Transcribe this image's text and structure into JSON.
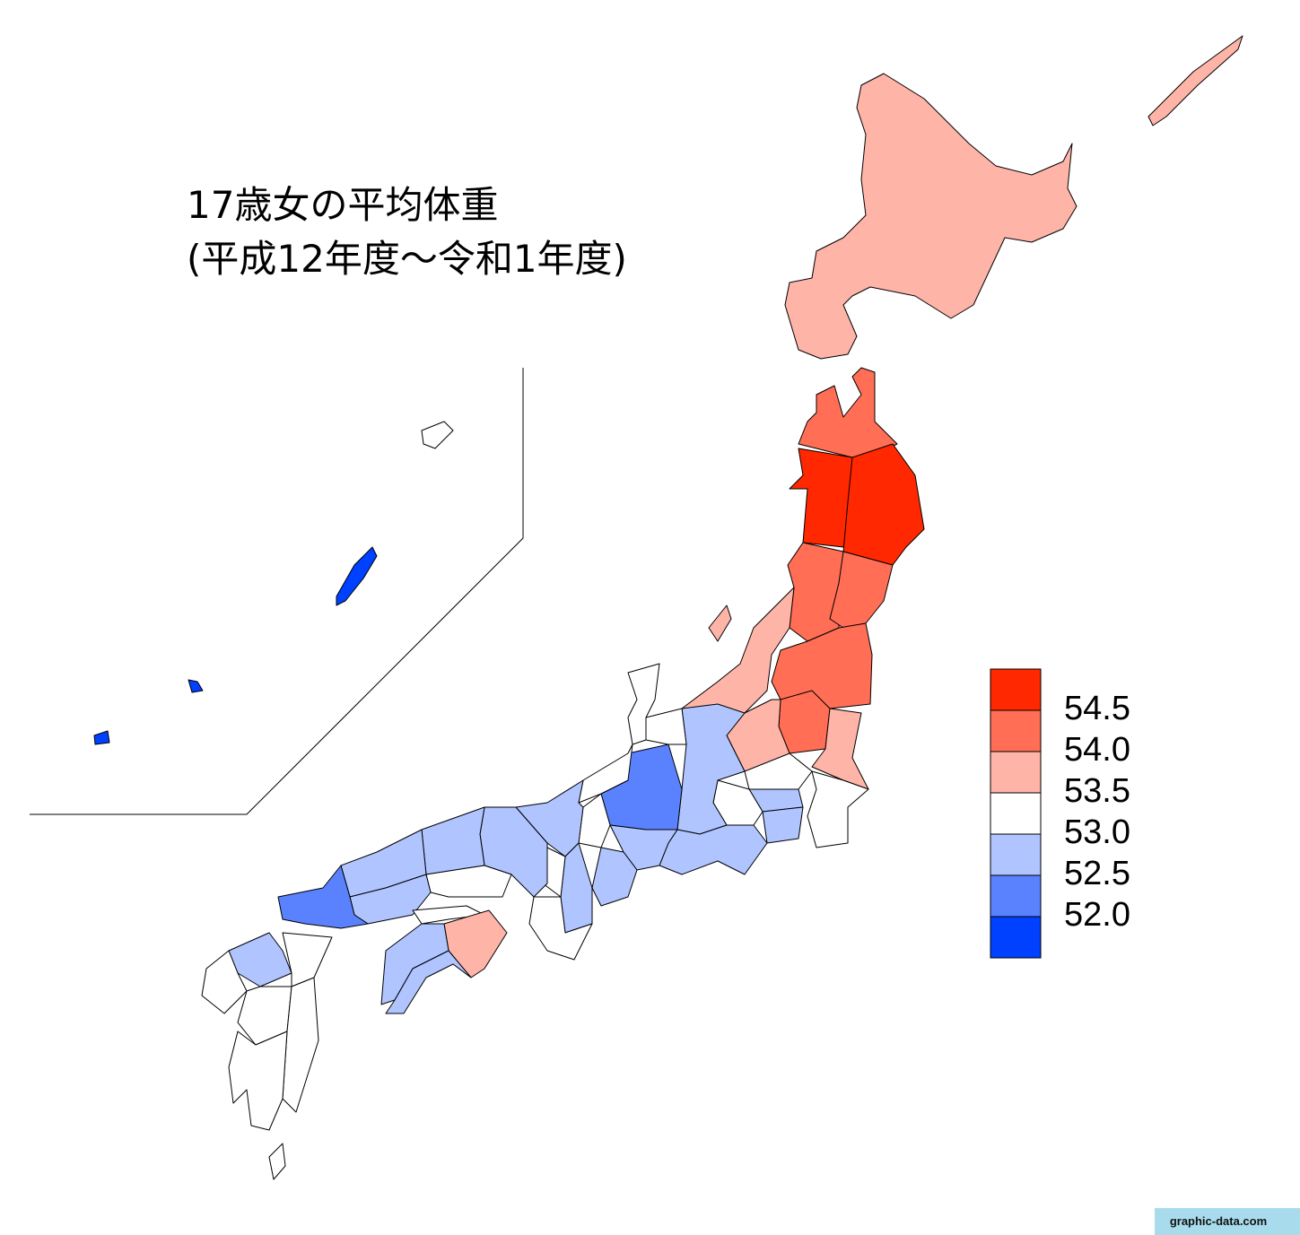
{
  "title": [
    "17歳女の平均体重",
    "(平成12年度～令和1年度)"
  ],
  "legend": {
    "colors": [
      "#ff2800",
      "#ff6e55",
      "#ffb4a8",
      "#ffffff",
      "#b0c4ff",
      "#5a82ff",
      "#0040ff"
    ],
    "labels": [
      "54.5",
      "54.0",
      "53.5",
      "53.0",
      "52.5",
      "52.0"
    ]
  },
  "watermark": "graphic-data.com"
}
